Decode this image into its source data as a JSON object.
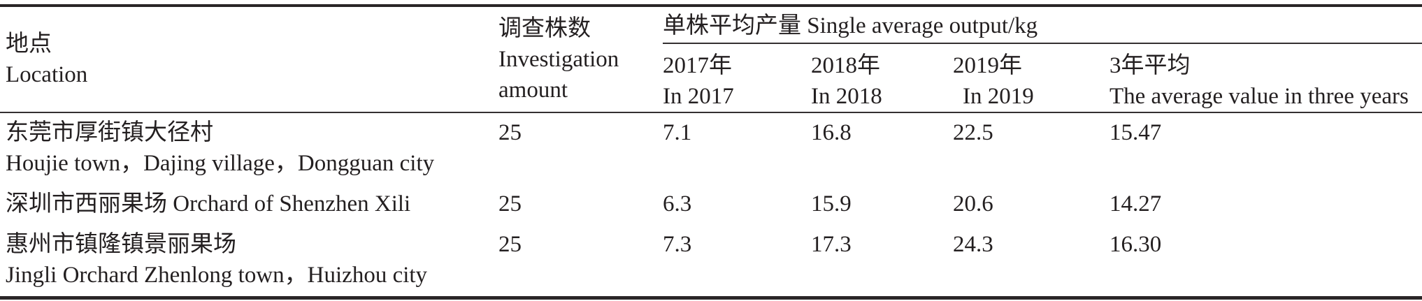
{
  "colors": {
    "text": "#231f20",
    "rule": "#343031",
    "background": "#ffffff"
  },
  "table": {
    "location_header": {
      "zh": "地点",
      "en": "Location"
    },
    "amount_header": {
      "line1": "调查株数",
      "line2": "Investigation",
      "line3": "amount"
    },
    "group_header": "单株平均产量 Single average output/kg",
    "sub_headers": [
      {
        "zh": "2017年",
        "en": "In 2017"
      },
      {
        "zh": "2018年",
        "en": "In 2018"
      },
      {
        "zh": "2019年",
        "en": "In 2019"
      },
      {
        "zh": "3年平均",
        "en": "The average value in three years"
      }
    ],
    "rows": [
      {
        "location_zh": "东莞市厚街镇大径村",
        "location_en": "Houjie town，Dajing village，Dongguan city",
        "amount": "25",
        "y2017": "7.1",
        "y2018": "16.8",
        "y2019": "22.5",
        "avg3": "15.47"
      },
      {
        "location_zh": "深圳市西丽果场 Orchard of Shenzhen Xili",
        "location_en": "",
        "amount": "25",
        "y2017": "6.3",
        "y2018": "15.9",
        "y2019": "20.6",
        "avg3": "14.27"
      },
      {
        "location_zh": "惠州市镇隆镇景丽果场",
        "location_en": "Jingli Orchard Zhenlong town，Huizhou city",
        "amount": "25",
        "y2017": "7.3",
        "y2018": "17.3",
        "y2019": "24.3",
        "avg3": "16.30"
      }
    ]
  }
}
